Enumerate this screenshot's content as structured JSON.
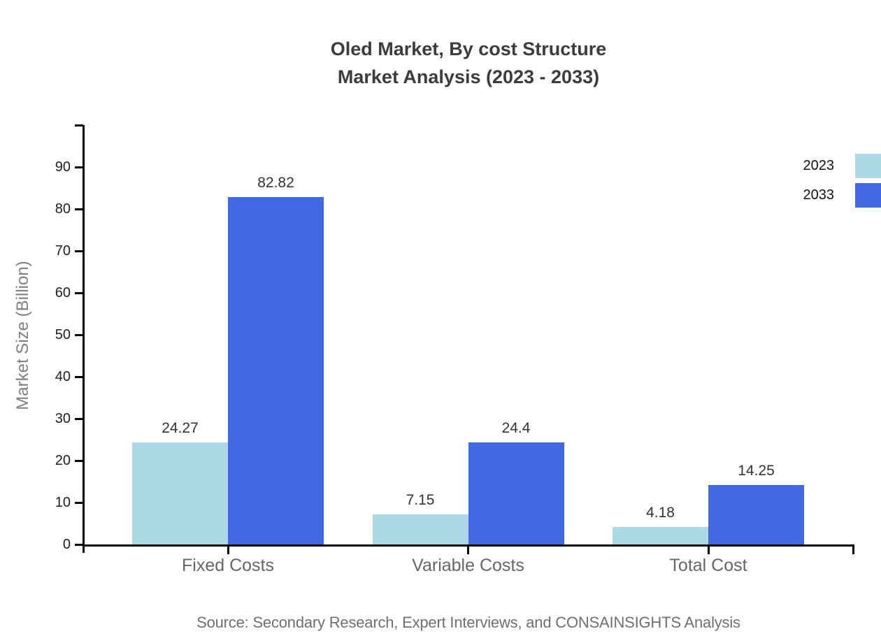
{
  "title": {
    "line1": "Oled Market, By cost Structure",
    "line2": "Market Analysis (2023 - 2033)"
  },
  "source_note": "Source: Secondary Research, Expert Interviews, and CONSAINSIGHTS Analysis",
  "colors": {
    "series_2023": "#ADD8E6",
    "series_2033": "#4169E1",
    "axis": "#000000",
    "title_text": "#3C3C3C",
    "tick_text": "#1F1F1F",
    "category_text": "#666666",
    "ylabel_text": "#808080",
    "source_text": "#6F6F6F"
  },
  "chart_data": {
    "type": "bar",
    "title": "Oled Market, By cost Structure Market Analysis (2023 - 2033)",
    "categories": [
      "Fixed Costs",
      "Variable Costs",
      "Total Cost"
    ],
    "series": [
      {
        "name": "2023",
        "color": "#ADD8E6",
        "values": [
          24.27,
          7.15,
          4.18
        ]
      },
      {
        "name": "2033",
        "color": "#4169E1",
        "values": [
          82.82,
          24.4,
          14.25
        ]
      }
    ],
    "xlabel": "",
    "ylabel": "Market Size (Billion)",
    "ylim": [
      0,
      100
    ],
    "yticks": [
      0,
      10,
      20,
      30,
      40,
      50,
      60,
      70,
      80,
      90
    ],
    "grid": false,
    "legend_position": "top-right",
    "value_labels": true
  }
}
